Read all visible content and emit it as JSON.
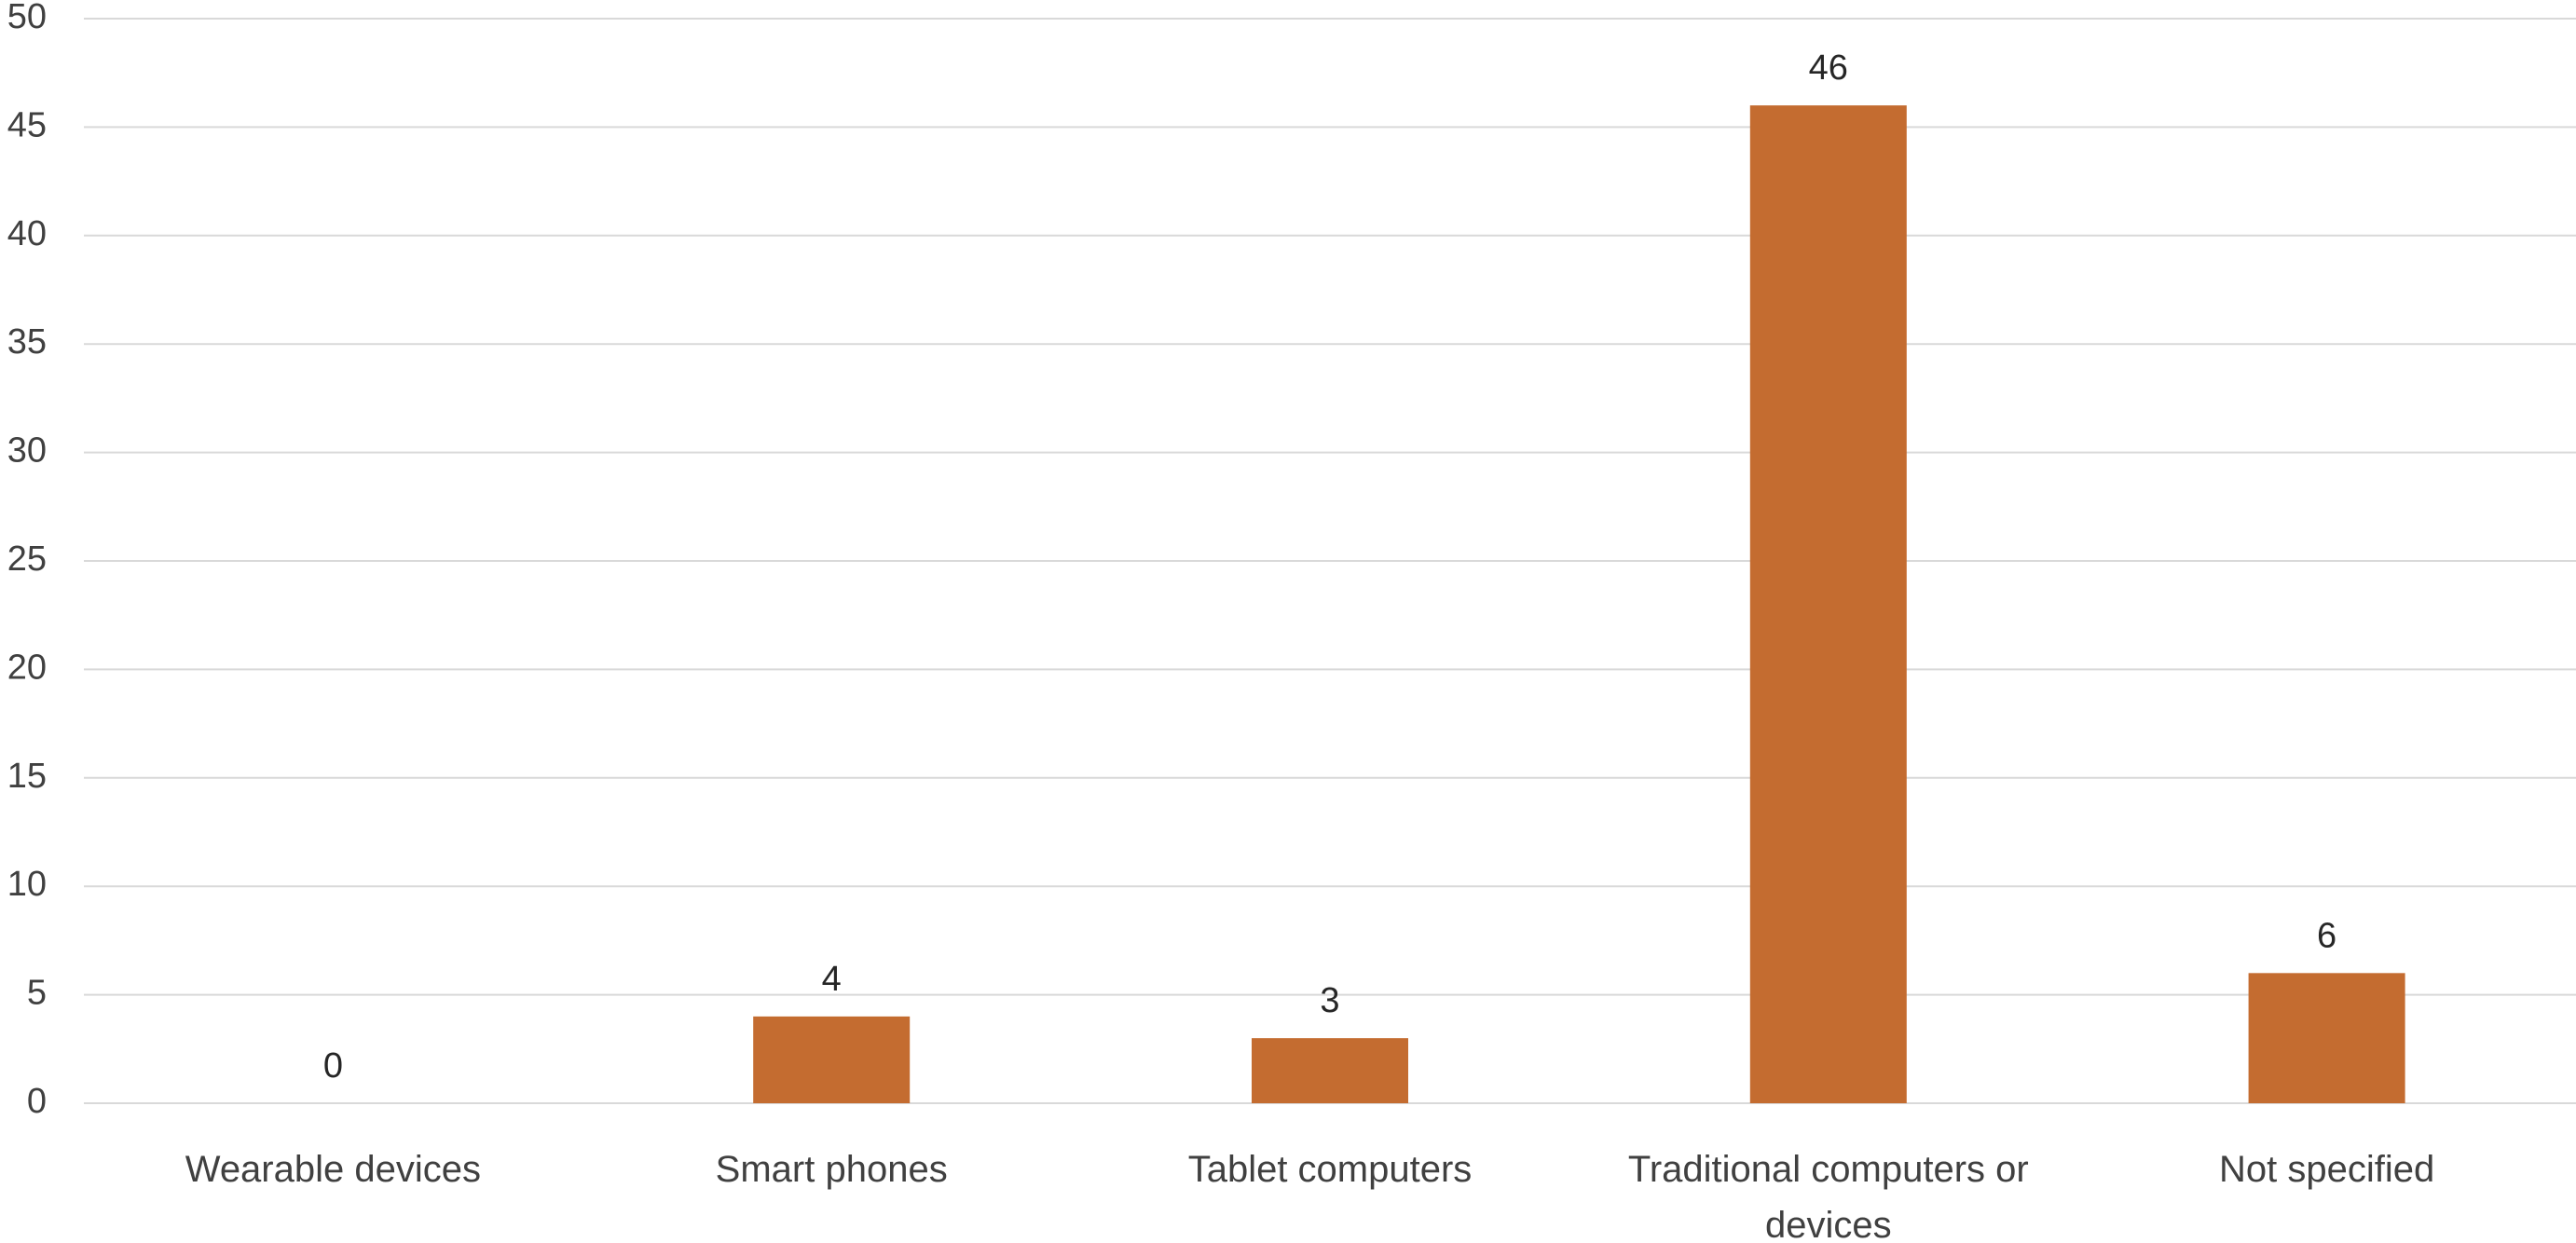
{
  "chart_data": {
    "type": "bar",
    "categories": [
      [
        "Wearable devices"
      ],
      [
        "Smart phones"
      ],
      [
        "Tablet computers"
      ],
      [
        "Traditional computers or",
        "devices"
      ],
      [
        "Not specified"
      ]
    ],
    "values": [
      0,
      4,
      3,
      46,
      6
    ],
    "data_labels": [
      "0",
      "4",
      "3",
      "46",
      "6"
    ],
    "ylim": [
      0,
      50
    ],
    "yticks": [
      0,
      5,
      10,
      15,
      20,
      25,
      30,
      35,
      40,
      45,
      50
    ],
    "grid": true,
    "legend": "none",
    "colors": {
      "bar": "#C46C30",
      "grid": "#D9D9D9",
      "text": "#404040"
    }
  }
}
